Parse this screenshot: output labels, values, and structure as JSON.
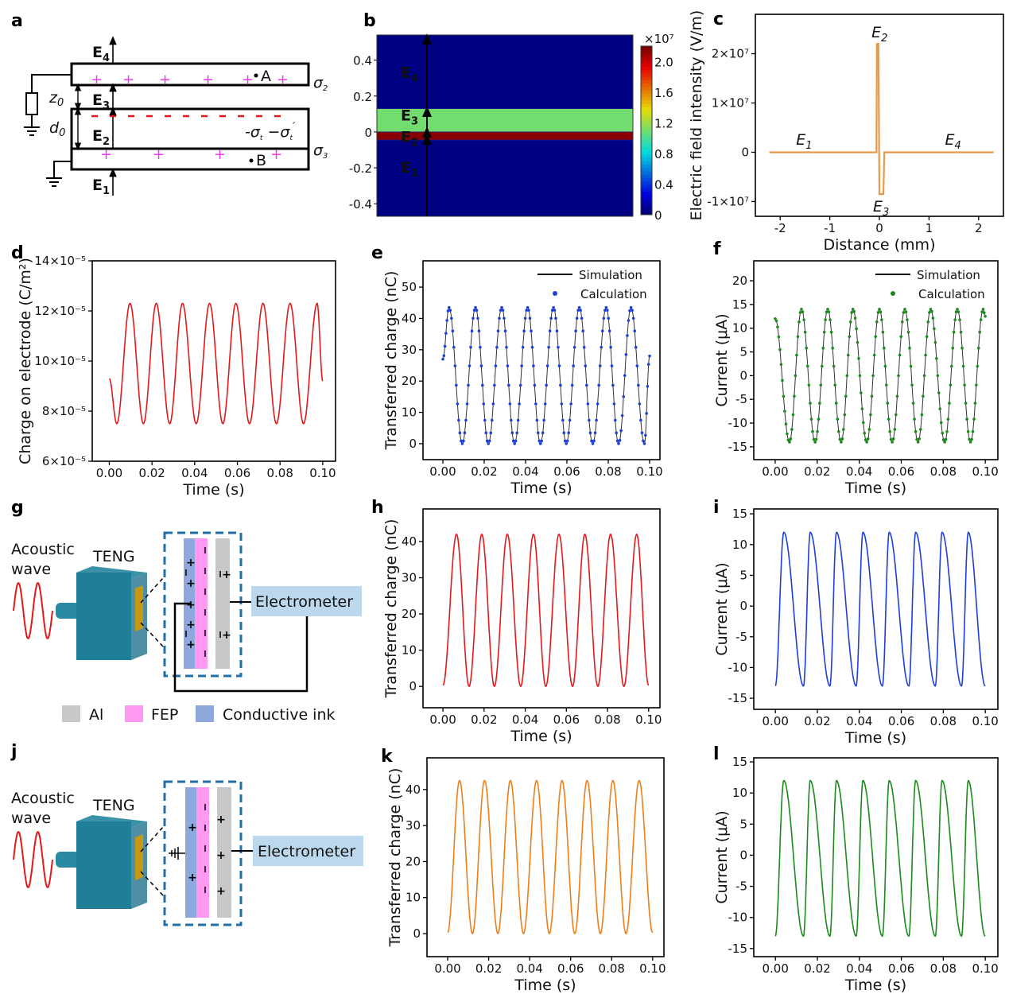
{
  "panel_labels": [
    "a",
    "b",
    "c",
    "d",
    "e",
    "f",
    "g",
    "h",
    "i",
    "j",
    "k",
    "l"
  ],
  "colors": {
    "red": "#e0191b",
    "blue": "#1f3fd9",
    "green": "#1c8a1c",
    "orange": "#ee7e1a",
    "c_line": "#e69a4a",
    "magenta": "#e83ee8",
    "teal": "#1f7f99",
    "al": "#c8c8c8",
    "fep": "#ff99f2",
    "ink": "#8fa8dc",
    "electrometer": "#bcd8ec",
    "dash_box": "#1f6fa8"
  },
  "diagram_a": {
    "E4": "E",
    "E4_sub": "4",
    "E3": "E",
    "E3_sub": "3",
    "E2": "E",
    "E2_sub": "2",
    "E1": "E",
    "E1_sub": "1",
    "z0": "z",
    "z0_sub": "0",
    "d0": "d",
    "d0_sub": "0",
    "sigma2": "σ",
    "sigma2_sub": "2",
    "sigma3": "σ",
    "sigma3_sub": "3",
    "sigma_t": "-σ",
    "sigma_t_sub": "t",
    "sigma_t2": " −σ",
    "sigma_t2_sub": "t",
    "prime": "′",
    "point_A": "A",
    "point_B": "B",
    "plus": "+"
  },
  "diagram_g": {
    "acoustic": "Acoustic",
    "wave": "wave",
    "teng": "TENG",
    "electrometer": "Electrometer",
    "legend": [
      {
        "label": "Al",
        "color": "#c8c8c8"
      },
      {
        "label": "FEP",
        "color": "#ff99f2"
      },
      {
        "label": "Conductive ink",
        "color": "#8fa8dc"
      }
    ]
  },
  "diagram_j": {
    "acoustic": "Acoustic",
    "wave": "wave",
    "teng": "TENG",
    "electrometer": "Electrometer"
  },
  "chart_data": [
    {
      "id": "b",
      "type": "heatmap",
      "colorbar_label": "×10⁷",
      "colorbar_ticks": [
        0,
        0.4,
        0.8,
        1.2,
        1.6,
        2.0
      ],
      "colorbar_tick_labels": [
        "0",
        "0.4",
        "0.8",
        "1.2",
        "1.6",
        "2.0"
      ],
      "colorbar_range": [
        0,
        2.2
      ],
      "ylim": [
        -0.47,
        0.54
      ],
      "yticks": [
        -0.4,
        -0.2,
        0,
        0.2,
        0.4
      ],
      "ytick_labels": [
        "-0.4",
        "-0.2",
        "0",
        "0.2",
        "0.4"
      ],
      "bands": [
        {
          "y": [
            0.13,
            0.54
          ],
          "value": 0.05
        },
        {
          "y": [
            0.0,
            0.13
          ],
          "value": 1.1
        },
        {
          "y": [
            -0.045,
            0.0
          ],
          "value": 2.15
        },
        {
          "y": [
            -0.47,
            -0.045
          ],
          "value": 0.05
        }
      ],
      "annotations": [
        {
          "text": "E",
          "sub": "4",
          "y": 0.33
        },
        {
          "text": "E",
          "sub": "3",
          "y": 0.09
        },
        {
          "text": "E",
          "sub": "2",
          "y": -0.03
        },
        {
          "text": "E",
          "sub": "1",
          "y": -0.2
        }
      ]
    },
    {
      "id": "c",
      "type": "line",
      "xlabel": "Distance (mm)",
      "ylabel": "Electric field intensity (V/m)",
      "xlim": [
        -2.5,
        2.5
      ],
      "ylim": [
        -13000000.0,
        28000000.0
      ],
      "xticks": [
        -2,
        -1,
        0,
        1,
        2
      ],
      "xtick_labels": [
        "-2",
        "-1",
        "0",
        "1",
        "2"
      ],
      "yticks": [
        -10000000.0,
        0,
        10000000.0,
        20000000.0
      ],
      "ytick_labels": [
        "-1×10⁷",
        "0",
        "1×10⁷",
        "2×10⁷"
      ],
      "series": [
        {
          "color": "#e69a4a",
          "points": [
            [
              -2.22,
              0
            ],
            [
              -0.06,
              0
            ],
            [
              -0.05,
              22000000.0
            ],
            [
              -0.02,
              22000000.0
            ],
            [
              0.0,
              -8500000.0
            ],
            [
              0.08,
              -8500000.0
            ],
            [
              0.1,
              0
            ],
            [
              2.3,
              0
            ]
          ]
        }
      ],
      "annotations": [
        {
          "text": "E",
          "sub": "1",
          "x": -1.55,
          "y": 1500000.0
        },
        {
          "text": "E",
          "sub": "2",
          "x": -0.03,
          "y": 23300000.0
        },
        {
          "text": "E",
          "sub": "3",
          "x": 0.0,
          "y": -12000000.0
        },
        {
          "text": "E",
          "sub": "4",
          "x": 1.45,
          "y": 1500000.0
        }
      ]
    },
    {
      "id": "d",
      "type": "line",
      "xlabel": "Time (s)",
      "ylabel": "Charge on electrode (C/m²)",
      "xlim": [
        -0.008,
        0.106
      ],
      "ylim": [
        6e-05,
        0.00014
      ],
      "yunit": 1e-05,
      "xticks": [
        0,
        0.02,
        0.04,
        0.06,
        0.08,
        0.1
      ],
      "xtick_labels": [
        "0.00",
        "0.02",
        "0.04",
        "0.06",
        "0.08",
        "0.10"
      ],
      "yticks": [
        6e-05,
        8e-05,
        0.0001,
        0.00012,
        0.00014
      ],
      "ytick_labels": [
        "6×10⁻⁵",
        "8×10⁻⁵",
        "10×10⁻⁵",
        "12×10⁻⁵",
        "14×10⁻⁵"
      ],
      "series": [
        {
          "color": "#e0191b",
          "extrema": [
            [
              0,
              9.3e-05
            ],
            [
              0.0035,
              7.5e-05
            ],
            [
              0.0097,
              0.000123
            ],
            [
              0.016,
              7.5e-05
            ],
            [
              0.022,
              0.000123
            ],
            [
              0.0283,
              7.5e-05
            ],
            [
              0.0343,
              0.000123
            ],
            [
              0.0407,
              7.5e-05
            ],
            [
              0.047,
              0.000123
            ],
            [
              0.0532,
              7.5e-05
            ],
            [
              0.0593,
              0.000123
            ],
            [
              0.0657,
              7.5e-05
            ],
            [
              0.072,
              0.000123
            ],
            [
              0.0783,
              7.5e-05
            ],
            [
              0.0847,
              0.000123
            ],
            [
              0.091,
              7.5e-05
            ],
            [
              0.0974,
              0.000123
            ],
            [
              0.1,
              9.2e-05
            ]
          ]
        }
      ]
    },
    {
      "id": "e",
      "type": "line",
      "xlabel": "Time (s)",
      "ylabel": "Transferred charge (nC)",
      "xlim": [
        -0.0096,
        0.105
      ],
      "ylim": [
        -5.1,
        58.4
      ],
      "xticks": [
        0,
        0.02,
        0.04,
        0.06,
        0.08,
        0.1
      ],
      "xtick_labels": [
        "0.00",
        "0.02",
        "0.04",
        "0.06",
        "0.08",
        "0.10"
      ],
      "yticks": [
        0,
        10,
        20,
        30,
        40,
        50
      ],
      "ytick_labels": [
        "0",
        "10",
        "20",
        "30",
        "40",
        "50"
      ],
      "legend": "top-right",
      "series": [
        {
          "name": "Simulation",
          "style": "line",
          "color": "#111111"
        },
        {
          "name": "Calculation",
          "style": "dots",
          "color": "#1f3fd9",
          "extrema": [
            [
              0,
              27
            ],
            [
              0.003,
              43.5
            ],
            [
              0.0094,
              0
            ],
            [
              0.0158,
              43.5
            ],
            [
              0.022,
              0
            ],
            [
              0.0285,
              43.5
            ],
            [
              0.0347,
              0
            ],
            [
              0.041,
              43.5
            ],
            [
              0.0472,
              0
            ],
            [
              0.0535,
              43.5
            ],
            [
              0.0597,
              0
            ],
            [
              0.066,
              43.5
            ],
            [
              0.0725,
              0
            ],
            [
              0.079,
              43.5
            ],
            [
              0.085,
              0
            ],
            [
              0.091,
              43.5
            ],
            [
              0.0975,
              0
            ],
            [
              0.1,
              28
            ]
          ]
        }
      ]
    },
    {
      "id": "f",
      "type": "line",
      "xlabel": "Time (s)",
      "ylabel": "Current (μA)",
      "xlim": [
        -0.0102,
        0.106
      ],
      "ylim": [
        -17.7,
        24.2
      ],
      "xticks": [
        0,
        0.02,
        0.04,
        0.06,
        0.08,
        0.1
      ],
      "xtick_labels": [
        "0.00",
        "0.02",
        "0.04",
        "0.06",
        "0.08",
        "0.10"
      ],
      "yticks": [
        -15,
        -10,
        -5,
        0,
        5,
        10,
        15,
        20
      ],
      "ytick_labels": [
        "-15",
        "-10",
        "-5",
        "0",
        "5",
        "10",
        "15",
        "20"
      ],
      "legend": "top-right",
      "series": [
        {
          "name": "Simulation",
          "style": "line",
          "color": "#111111"
        },
        {
          "name": "Calculation",
          "style": "dots",
          "color": "#1c8a1c",
          "extrema": [
            [
              0,
              12
            ],
            [
              0.0068,
              -14
            ],
            [
              0.0125,
              14
            ],
            [
              0.019,
              -14
            ],
            [
              0.025,
              14
            ],
            [
              0.0314,
              -14
            ],
            [
              0.037,
              14
            ],
            [
              0.0436,
              -14
            ],
            [
              0.0496,
              14
            ],
            [
              0.0557,
              -14
            ],
            [
              0.0617,
              14
            ],
            [
              0.068,
              -14
            ],
            [
              0.074,
              14
            ],
            [
              0.0807,
              -14
            ],
            [
              0.0867,
              14
            ],
            [
              0.093,
              -14
            ],
            [
              0.099,
              14
            ],
            [
              0.1,
              12.5
            ]
          ]
        }
      ]
    },
    {
      "id": "h",
      "type": "line",
      "xlabel": "Time (s)",
      "ylabel": "Transferred charge (nC)",
      "xlim": [
        -0.0097,
        0.1055
      ],
      "ylim": [
        -5.9,
        49
      ],
      "xticks": [
        0,
        0.02,
        0.04,
        0.06,
        0.08,
        0.1
      ],
      "xtick_labels": [
        "0.00",
        "0.02",
        "0.04",
        "0.06",
        "0.08",
        "0.10"
      ],
      "yticks": [
        0,
        10,
        20,
        30,
        40
      ],
      "ytick_labels": [
        "0",
        "10",
        "20",
        "30",
        "40"
      ],
      "series": [
        {
          "color": "#e0191b",
          "extrema": [
            [
              0,
              0.3
            ],
            [
              0.0066,
              42
            ],
            [
              0.0127,
              0
            ],
            [
              0.0189,
              42
            ],
            [
              0.025,
              0
            ],
            [
              0.0313,
              42
            ],
            [
              0.0378,
              0
            ],
            [
              0.044,
              42
            ],
            [
              0.05,
              0
            ],
            [
              0.0564,
              42
            ],
            [
              0.063,
              0
            ],
            [
              0.069,
              42
            ],
            [
              0.0753,
              0
            ],
            [
              0.0815,
              42
            ],
            [
              0.088,
              0
            ],
            [
              0.0942,
              42
            ],
            [
              0.1,
              0.3
            ]
          ]
        }
      ]
    },
    {
      "id": "i",
      "type": "line",
      "xlabel": "Time (s)",
      "ylabel": "Current (μA)",
      "xlim": [
        -0.0103,
        0.106
      ],
      "ylim": [
        -16.8,
        15.8
      ],
      "xticks": [
        0,
        0.02,
        0.04,
        0.06,
        0.08,
        0.1
      ],
      "xtick_labels": [
        "0.00",
        "0.02",
        "0.04",
        "0.06",
        "0.08",
        "0.10"
      ],
      "yticks": [
        -15,
        -10,
        -5,
        0,
        5,
        10,
        15
      ],
      "ytick_labels": [
        "-15",
        "-10",
        "-5",
        "0",
        "5",
        "10",
        "15"
      ],
      "series": [
        {
          "color": "#1f3fd9",
          "extrema": [
            [
              0,
              -13
            ],
            [
              0.004,
              12
            ],
            [
              0.0134,
              -13
            ],
            [
              0.0166,
              12
            ],
            [
              0.026,
              -13
            ],
            [
              0.0291,
              12
            ],
            [
              0.0385,
              -13
            ],
            [
              0.0417,
              12
            ],
            [
              0.051,
              -13
            ],
            [
              0.0542,
              12
            ],
            [
              0.0636,
              -13
            ],
            [
              0.0668,
              12
            ],
            [
              0.0762,
              -13
            ],
            [
              0.0794,
              12
            ],
            [
              0.0887,
              -13
            ],
            [
              0.0919,
              12
            ],
            [
              0.1,
              -13
            ]
          ]
        }
      ]
    },
    {
      "id": "k",
      "type": "line",
      "xlabel": "Time (s)",
      "ylabel": "Transferred charge (nC)",
      "xlim": [
        -0.0101,
        0.1055
      ],
      "ylim": [
        -6.4,
        48.8
      ],
      "xticks": [
        0,
        0.02,
        0.04,
        0.06,
        0.08,
        0.1
      ],
      "xtick_labels": [
        "0.00",
        "0.02",
        "0.04",
        "0.06",
        "0.08",
        "0.10"
      ],
      "yticks": [
        0,
        10,
        20,
        30,
        40
      ],
      "ytick_labels": [
        "0",
        "10",
        "20",
        "30",
        "40"
      ],
      "series": [
        {
          "color": "#ee7e1a",
          "extrema": [
            [
              0,
              0.3
            ],
            [
              0.0058,
              42.5
            ],
            [
              0.0121,
              0
            ],
            [
              0.018,
              42.5
            ],
            [
              0.0245,
              0
            ],
            [
              0.0306,
              42.5
            ],
            [
              0.037,
              0
            ],
            [
              0.0434,
              42.5
            ],
            [
              0.0496,
              0
            ],
            [
              0.0558,
              42.5
            ],
            [
              0.062,
              0
            ],
            [
              0.068,
              42.5
            ],
            [
              0.0745,
              0
            ],
            [
              0.0806,
              42.5
            ],
            [
              0.087,
              0
            ],
            [
              0.0934,
              42.5
            ],
            [
              0.1,
              0.3
            ]
          ]
        }
      ]
    },
    {
      "id": "l",
      "type": "line",
      "xlabel": "Time (s)",
      "ylabel": "Current (μA)",
      "xlim": [
        -0.0103,
        0.106
      ],
      "ylim": [
        -16.3,
        15.65
      ],
      "xticks": [
        0,
        0.02,
        0.04,
        0.06,
        0.08,
        0.1
      ],
      "xtick_labels": [
        "0.00",
        "0.02",
        "0.04",
        "0.06",
        "0.08",
        "0.10"
      ],
      "yticks": [
        -15,
        -10,
        -5,
        0,
        5,
        10,
        15
      ],
      "ytick_labels": [
        "-15",
        "-10",
        "-5",
        "0",
        "5",
        "10",
        "15"
      ],
      "series": [
        {
          "color": "#1c8a1c",
          "extrema": [
            [
              0,
              -13
            ],
            [
              0.004,
              12
            ],
            [
              0.0134,
              -13
            ],
            [
              0.0166,
              12
            ],
            [
              0.026,
              -13
            ],
            [
              0.0291,
              12
            ],
            [
              0.0385,
              -13
            ],
            [
              0.0417,
              12
            ],
            [
              0.051,
              -13
            ],
            [
              0.0542,
              12
            ],
            [
              0.0636,
              -13
            ],
            [
              0.0668,
              12
            ],
            [
              0.0762,
              -13
            ],
            [
              0.0794,
              12
            ],
            [
              0.0887,
              -13
            ],
            [
              0.0919,
              12
            ],
            [
              0.1,
              -13
            ]
          ]
        }
      ]
    }
  ]
}
